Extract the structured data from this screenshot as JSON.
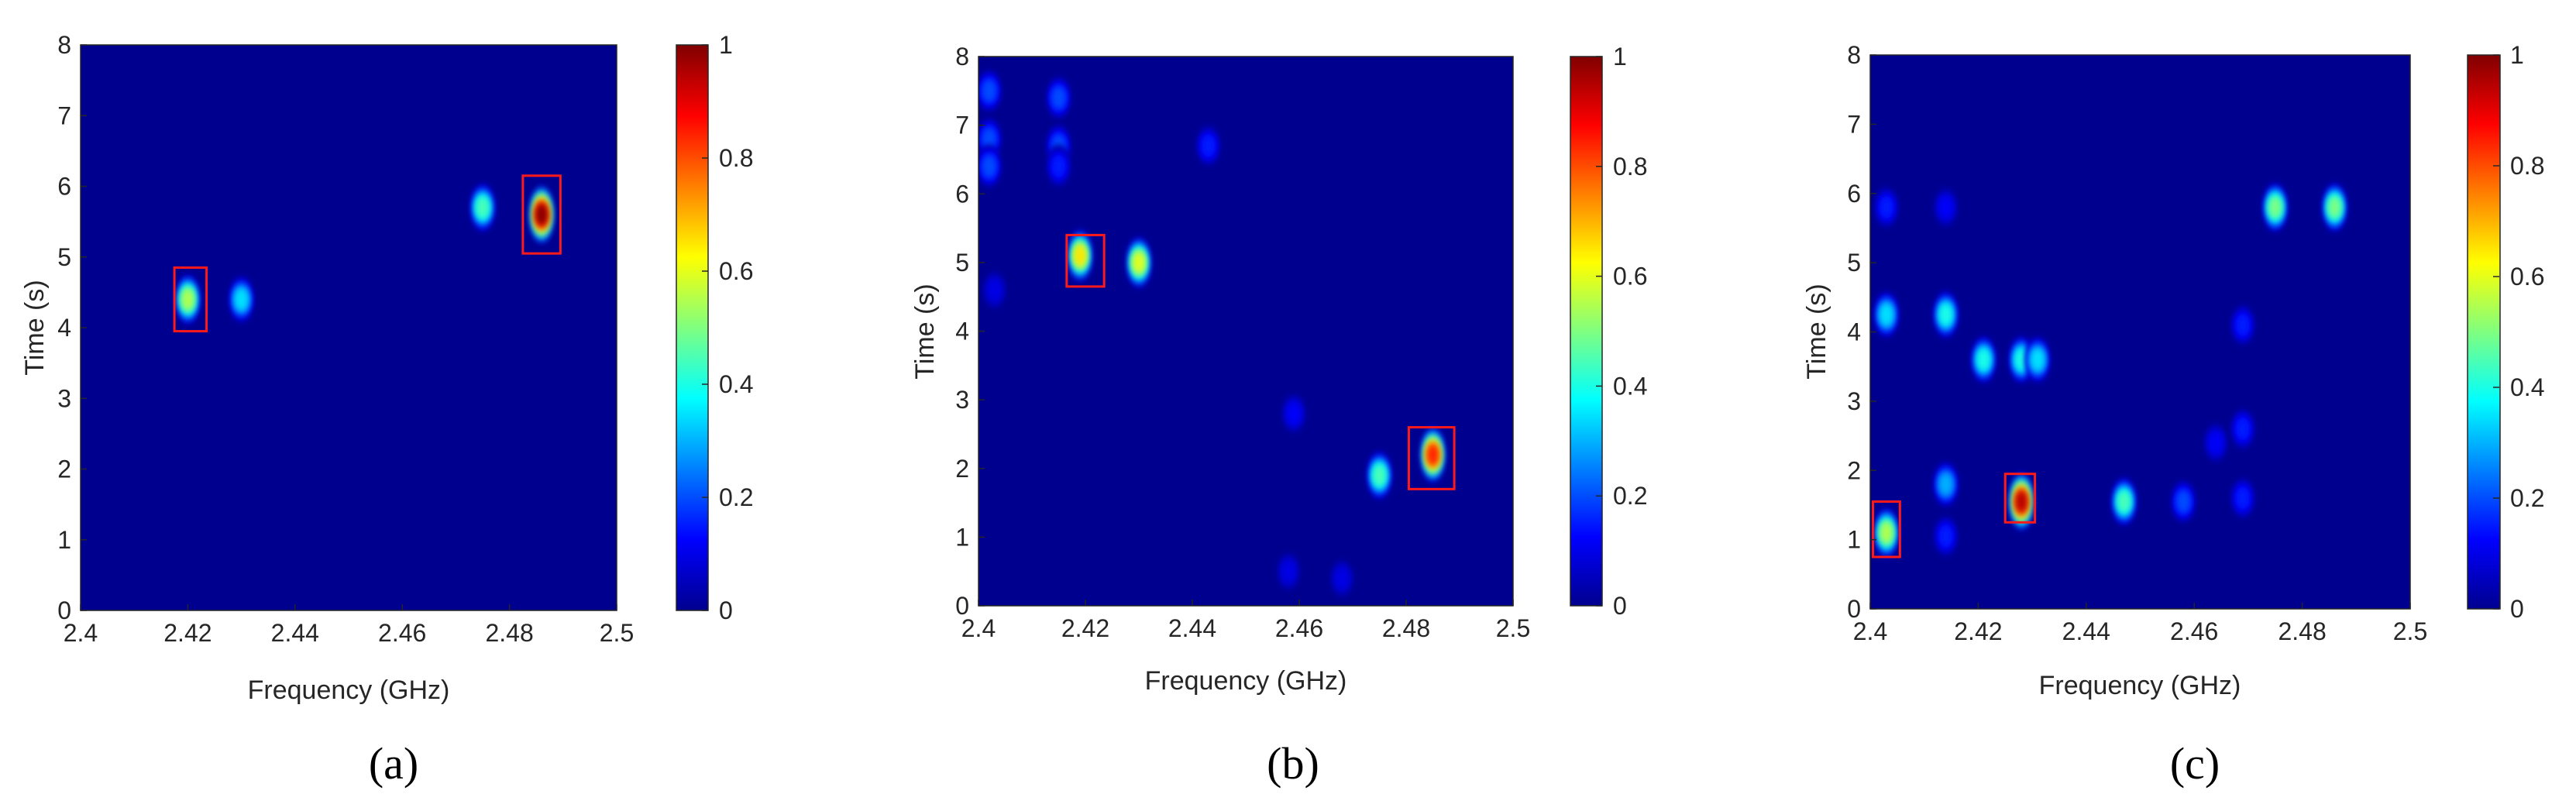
{
  "chart_data": [
    {
      "type": "heatmap",
      "panel_label": "(a)",
      "xlabel": "Frequency (GHz)",
      "ylabel": "Time (s)",
      "xlim": [
        2.4,
        2.5
      ],
      "ylim": [
        0,
        8
      ],
      "xticks": [
        "2.4",
        "2.42",
        "2.44",
        "2.46",
        "2.48",
        "2.5"
      ],
      "yticks": [
        "0",
        "1",
        "2",
        "3",
        "4",
        "5",
        "6",
        "7",
        "8"
      ],
      "colorbar": {
        "min": 0,
        "max": 1,
        "ticks": [
          "0",
          "0.2",
          "0.4",
          "0.6",
          "0.8",
          "1"
        ]
      },
      "hotspots": [
        {
          "f": 2.42,
          "t": 4.4,
          "intensity": 0.55
        },
        {
          "f": 2.43,
          "t": 4.4,
          "intensity": 0.35
        },
        {
          "f": 2.475,
          "t": 5.7,
          "intensity": 0.45
        },
        {
          "f": 2.486,
          "t": 5.6,
          "intensity": 1.0
        }
      ],
      "highlight_boxes": [
        {
          "f_range": [
            2.4175,
            2.4235
          ],
          "t_range": [
            3.95,
            4.85
          ]
        },
        {
          "f_range": [
            2.4825,
            2.4895
          ],
          "t_range": [
            5.05,
            6.15
          ]
        }
      ]
    },
    {
      "type": "heatmap",
      "panel_label": "(b)",
      "xlabel": "Frequency (GHz)",
      "ylabel": "Time (s)",
      "xlim": [
        2.4,
        2.5
      ],
      "ylim": [
        0,
        8
      ],
      "xticks": [
        "2.4",
        "2.42",
        "2.44",
        "2.46",
        "2.48",
        "2.5"
      ],
      "yticks": [
        "0",
        "1",
        "2",
        "3",
        "4",
        "5",
        "6",
        "7",
        "8"
      ],
      "colorbar": {
        "min": 0,
        "max": 1,
        "ticks": [
          "0",
          "0.2",
          "0.4",
          "0.6",
          "0.8",
          "1"
        ]
      },
      "hotspots": [
        {
          "f": 2.402,
          "t": 7.5,
          "intensity": 0.2
        },
        {
          "f": 2.402,
          "t": 6.8,
          "intensity": 0.2
        },
        {
          "f": 2.402,
          "t": 6.4,
          "intensity": 0.2
        },
        {
          "f": 2.415,
          "t": 7.4,
          "intensity": 0.2
        },
        {
          "f": 2.415,
          "t": 6.7,
          "intensity": 0.2
        },
        {
          "f": 2.415,
          "t": 6.4,
          "intensity": 0.15
        },
        {
          "f": 2.443,
          "t": 6.7,
          "intensity": 0.15
        },
        {
          "f": 2.419,
          "t": 5.1,
          "intensity": 0.65
        },
        {
          "f": 2.43,
          "t": 5.0,
          "intensity": 0.6
        },
        {
          "f": 2.403,
          "t": 4.6,
          "intensity": 0.1
        },
        {
          "f": 2.459,
          "t": 2.8,
          "intensity": 0.12
        },
        {
          "f": 2.475,
          "t": 1.9,
          "intensity": 0.45
        },
        {
          "f": 2.485,
          "t": 2.2,
          "intensity": 0.85
        },
        {
          "f": 2.458,
          "t": 0.5,
          "intensity": 0.1
        },
        {
          "f": 2.468,
          "t": 0.4,
          "intensity": 0.1
        }
      ],
      "highlight_boxes": [
        {
          "f_range": [
            2.4165,
            2.4235
          ],
          "t_range": [
            4.65,
            5.4
          ]
        },
        {
          "f_range": [
            2.4805,
            2.489
          ],
          "t_range": [
            1.7,
            2.6
          ]
        }
      ]
    },
    {
      "type": "heatmap",
      "panel_label": "(c)",
      "xlabel": "Frequency (GHz)",
      "ylabel": "Time (s)",
      "xlim": [
        2.4,
        2.5
      ],
      "ylim": [
        0,
        8
      ],
      "xticks": [
        "2.4",
        "2.42",
        "2.44",
        "2.46",
        "2.48",
        "2.5"
      ],
      "yticks": [
        "0",
        "1",
        "2",
        "3",
        "4",
        "5",
        "6",
        "7",
        "8"
      ],
      "colorbar": {
        "min": 0,
        "max": 1,
        "ticks": [
          "0",
          "0.2",
          "0.4",
          "0.6",
          "0.8",
          "1"
        ]
      },
      "hotspots": [
        {
          "f": 2.475,
          "t": 5.8,
          "intensity": 0.5
        },
        {
          "f": 2.486,
          "t": 5.8,
          "intensity": 0.5
        },
        {
          "f": 2.403,
          "t": 5.8,
          "intensity": 0.15
        },
        {
          "f": 2.414,
          "t": 5.8,
          "intensity": 0.12
        },
        {
          "f": 2.403,
          "t": 4.25,
          "intensity": 0.35
        },
        {
          "f": 2.414,
          "t": 4.25,
          "intensity": 0.4
        },
        {
          "f": 2.421,
          "t": 3.6,
          "intensity": 0.4
        },
        {
          "f": 2.428,
          "t": 3.6,
          "intensity": 0.4
        },
        {
          "f": 2.431,
          "t": 3.6,
          "intensity": 0.35
        },
        {
          "f": 2.469,
          "t": 4.1,
          "intensity": 0.15
        },
        {
          "f": 2.469,
          "t": 2.6,
          "intensity": 0.15
        },
        {
          "f": 2.403,
          "t": 1.1,
          "intensity": 0.55
        },
        {
          "f": 2.414,
          "t": 1.8,
          "intensity": 0.3
        },
        {
          "f": 2.414,
          "t": 1.05,
          "intensity": 0.15
        },
        {
          "f": 2.428,
          "t": 1.55,
          "intensity": 0.95
        },
        {
          "f": 2.447,
          "t": 1.55,
          "intensity": 0.45
        },
        {
          "f": 2.458,
          "t": 1.55,
          "intensity": 0.2
        },
        {
          "f": 2.469,
          "t": 1.6,
          "intensity": 0.15
        },
        {
          "f": 2.464,
          "t": 2.4,
          "intensity": 0.12
        }
      ],
      "highlight_boxes": [
        {
          "f_range": [
            2.4005,
            2.4055
          ],
          "t_range": [
            0.75,
            1.55
          ]
        },
        {
          "f_range": [
            2.425,
            2.4305
          ],
          "t_range": [
            1.25,
            1.95
          ]
        }
      ]
    }
  ]
}
